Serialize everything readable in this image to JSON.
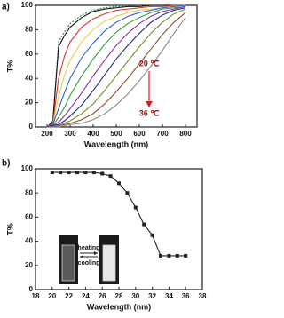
{
  "chart_data": [
    {
      "type": "line",
      "label": "a)",
      "xlabel": "Wavelength (nm)",
      "ylabel": "T%",
      "x": [
        200,
        225,
        250,
        275,
        300,
        350,
        400,
        450,
        500,
        550,
        600,
        650,
        700,
        750,
        800
      ],
      "xlim": [
        150,
        850
      ],
      "xticks": [
        200,
        300,
        400,
        500,
        600,
        700,
        800
      ],
      "ylim": [
        0,
        100
      ],
      "yticks": [
        0,
        20,
        40,
        60,
        80,
        100
      ],
      "annotations": [
        "20 ℃",
        "36 ℃"
      ],
      "series": [
        {
          "color": "#2f6f4f",
          "dash": true,
          "values": [
            0,
            5,
            70,
            78,
            85,
            92,
            96,
            98,
            99,
            99,
            100,
            100,
            100,
            100,
            100
          ]
        },
        {
          "color": "#111111",
          "values": [
            0,
            4,
            66,
            75,
            82,
            90,
            95,
            97,
            98,
            99,
            99,
            100,
            100,
            100,
            100
          ]
        },
        {
          "color": "#e0302a",
          "values": [
            0,
            3,
            40,
            58,
            70,
            82,
            89,
            93,
            96,
            97,
            98,
            99,
            99,
            100,
            100
          ]
        },
        {
          "color": "#e8cf4a",
          "values": [
            0,
            2,
            25,
            42,
            55,
            70,
            80,
            87,
            91,
            94,
            96,
            97,
            98,
            99,
            100
          ]
        },
        {
          "color": "#2b5fd9",
          "values": [
            0,
            2,
            15,
            28,
            40,
            57,
            69,
            79,
            86,
            91,
            94,
            96,
            98,
            99,
            100
          ]
        },
        {
          "color": "#2e9e3a",
          "values": [
            0,
            1,
            8,
            16,
            26,
            42,
            56,
            68,
            78,
            85,
            90,
            94,
            97,
            98,
            99
          ]
        },
        {
          "color": "#8a2f9e",
          "values": [
            0,
            1,
            4,
            9,
            15,
            28,
            42,
            55,
            67,
            77,
            85,
            91,
            95,
            97,
            99
          ]
        },
        {
          "color": "#1d2a8c",
          "values": [
            0,
            1,
            2,
            5,
            9,
            18,
            30,
            43,
            56,
            67,
            77,
            86,
            92,
            96,
            98
          ]
        },
        {
          "color": "#7c8a2a",
          "values": [
            0,
            0,
            1,
            3,
            5,
            11,
            19,
            30,
            42,
            54,
            66,
            77,
            86,
            93,
            97
          ]
        },
        {
          "color": "#8b4a2b",
          "values": [
            0,
            0,
            1,
            2,
            3,
            6,
            11,
            19,
            29,
            40,
            52,
            64,
            76,
            86,
            94
          ]
        },
        {
          "color": "#888888",
          "values": [
            0,
            0,
            0,
            1,
            2,
            3,
            6,
            11,
            18,
            27,
            38,
            50,
            63,
            77,
            90
          ]
        }
      ]
    },
    {
      "type": "line",
      "label": "b)",
      "xlabel": "Wavelength (nm)",
      "ylabel": "T%",
      "x": [
        20,
        21,
        22,
        23,
        24,
        25,
        26,
        27,
        28,
        29,
        30,
        31,
        32,
        33,
        34,
        35,
        36
      ],
      "values": [
        97,
        97,
        97,
        97,
        97,
        97,
        96,
        94,
        88,
        80,
        68,
        54,
        45,
        28,
        28,
        28,
        28
      ],
      "color": "#222222",
      "marker": "square",
      "xlim": [
        18,
        38
      ],
      "xticks": [
        18,
        20,
        22,
        24,
        26,
        28,
        30,
        32,
        34,
        36,
        38
      ],
      "ylim": [
        0,
        100
      ],
      "yticks": [
        0,
        20,
        40,
        60,
        80,
        100
      ],
      "annotations": [
        "heating",
        "cooling"
      ]
    }
  ]
}
